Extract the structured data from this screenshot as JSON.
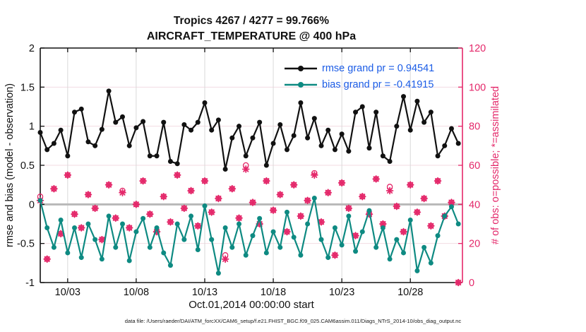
{
  "chart_data": {
    "type": "line+scatter",
    "title_line1": "Tropics 4267 / 4277 = 99.766%",
    "title_line2": "AIRCRAFT_TEMPERATURE @ 400 hPa",
    "x_axis": {
      "label": "Oct.01,2014 00:00:00 start",
      "tick_labels": [
        "10/03",
        "10/08",
        "10/13",
        "10/18",
        "10/23",
        "10/28"
      ],
      "tick_days": [
        3,
        8,
        13,
        18,
        23,
        28
      ],
      "range_days": [
        1,
        31.8
      ]
    },
    "left_axis": {
      "label": "rmse and bias (model - observation)",
      "tick_labels": [
        "2",
        "1.5",
        "1",
        "0.5",
        "0",
        "-0.5",
        "-1"
      ],
      "tick_values": [
        2,
        1.5,
        1,
        0.5,
        0,
        -0.5,
        -1
      ],
      "range": [
        -1,
        2
      ]
    },
    "right_axis": {
      "label": "# of obs: o=possible; *=assimilated",
      "tick_labels": [
        "120",
        "100",
        "80",
        "60",
        "40",
        "20",
        "0"
      ],
      "tick_values": [
        120,
        100,
        80,
        60,
        40,
        20,
        0
      ],
      "range": [
        0,
        120
      ]
    },
    "legend": {
      "rmse_label": "rmse grand pr = 0.94541",
      "bias_label": "bias grand pr = -0.41915"
    },
    "x": {
      "start_day": 1.0,
      "step_days": 0.5,
      "count": 62,
      "month": "October 2014"
    },
    "series": [
      {
        "name": "rmse",
        "axis": "left",
        "marker": "dot",
        "color": "#111111",
        "values": [
          0.92,
          0.7,
          0.78,
          0.95,
          0.62,
          1.18,
          1.22,
          0.8,
          0.75,
          0.96,
          1.45,
          1.05,
          1.12,
          0.75,
          0.98,
          1.06,
          0.62,
          0.62,
          1.05,
          0.55,
          0.52,
          1.02,
          0.95,
          1.05,
          1.3,
          0.95,
          1.08,
          0.45,
          0.85,
          1.0,
          0.62,
          0.85,
          1.05,
          0.5,
          0.78,
          1.02,
          0.7,
          0.88,
          1.3,
          0.85,
          1.1,
          0.75,
          0.95,
          0.7,
          0.9,
          0.68,
          1.18,
          1.25,
          0.72,
          1.18,
          0.62,
          0.55,
          1.0,
          1.38,
          0.95,
          1.32,
          1.05,
          1.18,
          0.62,
          0.75,
          0.97,
          0.78
        ]
      },
      {
        "name": "bias",
        "axis": "left",
        "marker": "dot",
        "color": "#0e8a82",
        "values": [
          0.05,
          -0.3,
          -0.55,
          -0.2,
          -0.62,
          -0.3,
          -0.68,
          -0.25,
          -0.45,
          -0.7,
          -0.15,
          -0.55,
          -0.25,
          -0.72,
          -0.35,
          -0.18,
          -0.55,
          -0.3,
          -0.62,
          -0.78,
          -0.25,
          -0.45,
          -0.15,
          -0.58,
          -0.02,
          -0.45,
          -0.88,
          -0.3,
          -0.55,
          -0.25,
          -0.65,
          -0.4,
          -0.18,
          -0.62,
          -0.35,
          -0.55,
          -0.1,
          -0.42,
          -0.65,
          -0.25,
          0.08,
          -0.45,
          -0.68,
          -0.3,
          -0.52,
          -0.15,
          -0.6,
          -0.35,
          -0.08,
          -0.55,
          -0.3,
          -0.7,
          -0.45,
          -0.62,
          -0.2,
          -0.85,
          -0.55,
          -0.75,
          -0.4,
          -0.15,
          -0.03,
          -0.25
        ]
      },
      {
        "name": "obs_possible",
        "axis": "right",
        "marker": "o",
        "color": "#e4286a",
        "values": [
          44,
          12,
          48,
          25,
          55,
          35,
          28,
          45,
          38,
          22,
          50,
          33,
          47,
          28,
          40,
          52,
          35,
          26,
          44,
          31,
          55,
          38,
          47,
          29,
          52,
          36,
          43,
          14,
          48,
          33,
          60,
          41,
          30,
          52,
          37,
          45,
          26,
          50,
          34,
          42,
          56,
          31,
          46,
          14,
          51,
          38,
          24,
          44,
          35,
          53,
          30,
          49,
          39,
          26,
          50,
          36,
          43,
          29,
          52,
          34,
          41,
          0
        ]
      },
      {
        "name": "obs_assimilated",
        "axis": "right",
        "marker": "star",
        "color": "#e4286a",
        "values": [
          42,
          12,
          48,
          25,
          55,
          35,
          28,
          45,
          38,
          22,
          50,
          33,
          46,
          28,
          40,
          52,
          35,
          26,
          44,
          31,
          55,
          38,
          47,
          29,
          52,
          36,
          43,
          12,
          48,
          33,
          58,
          41,
          30,
          52,
          37,
          45,
          26,
          50,
          34,
          42,
          55,
          31,
          46,
          14,
          51,
          38,
          24,
          44,
          35,
          53,
          30,
          47,
          39,
          26,
          50,
          36,
          43,
          29,
          52,
          34,
          41,
          0
        ]
      }
    ],
    "colors": {
      "rmse_line": "#111111",
      "bias_line": "#0e8a82",
      "crimson": "#e4286a",
      "legend_text": "#1b5ce6",
      "grid_vertical": "#d9d9d9",
      "grid_horizontal": "#f3dbe2",
      "zero_line": "#b8b8b8",
      "axis_black": "#111111"
    },
    "grid": true,
    "legend_position": "top-right-inside"
  },
  "footer": {
    "text": "data file: /Users/raeder/DAI/ATM_forcXX/CAM6_setup/f.e21.FHIST_BGC.f09_025.CAM6assim.011/Diags_NTrS_2014-10/obs_diag_output.nc"
  }
}
